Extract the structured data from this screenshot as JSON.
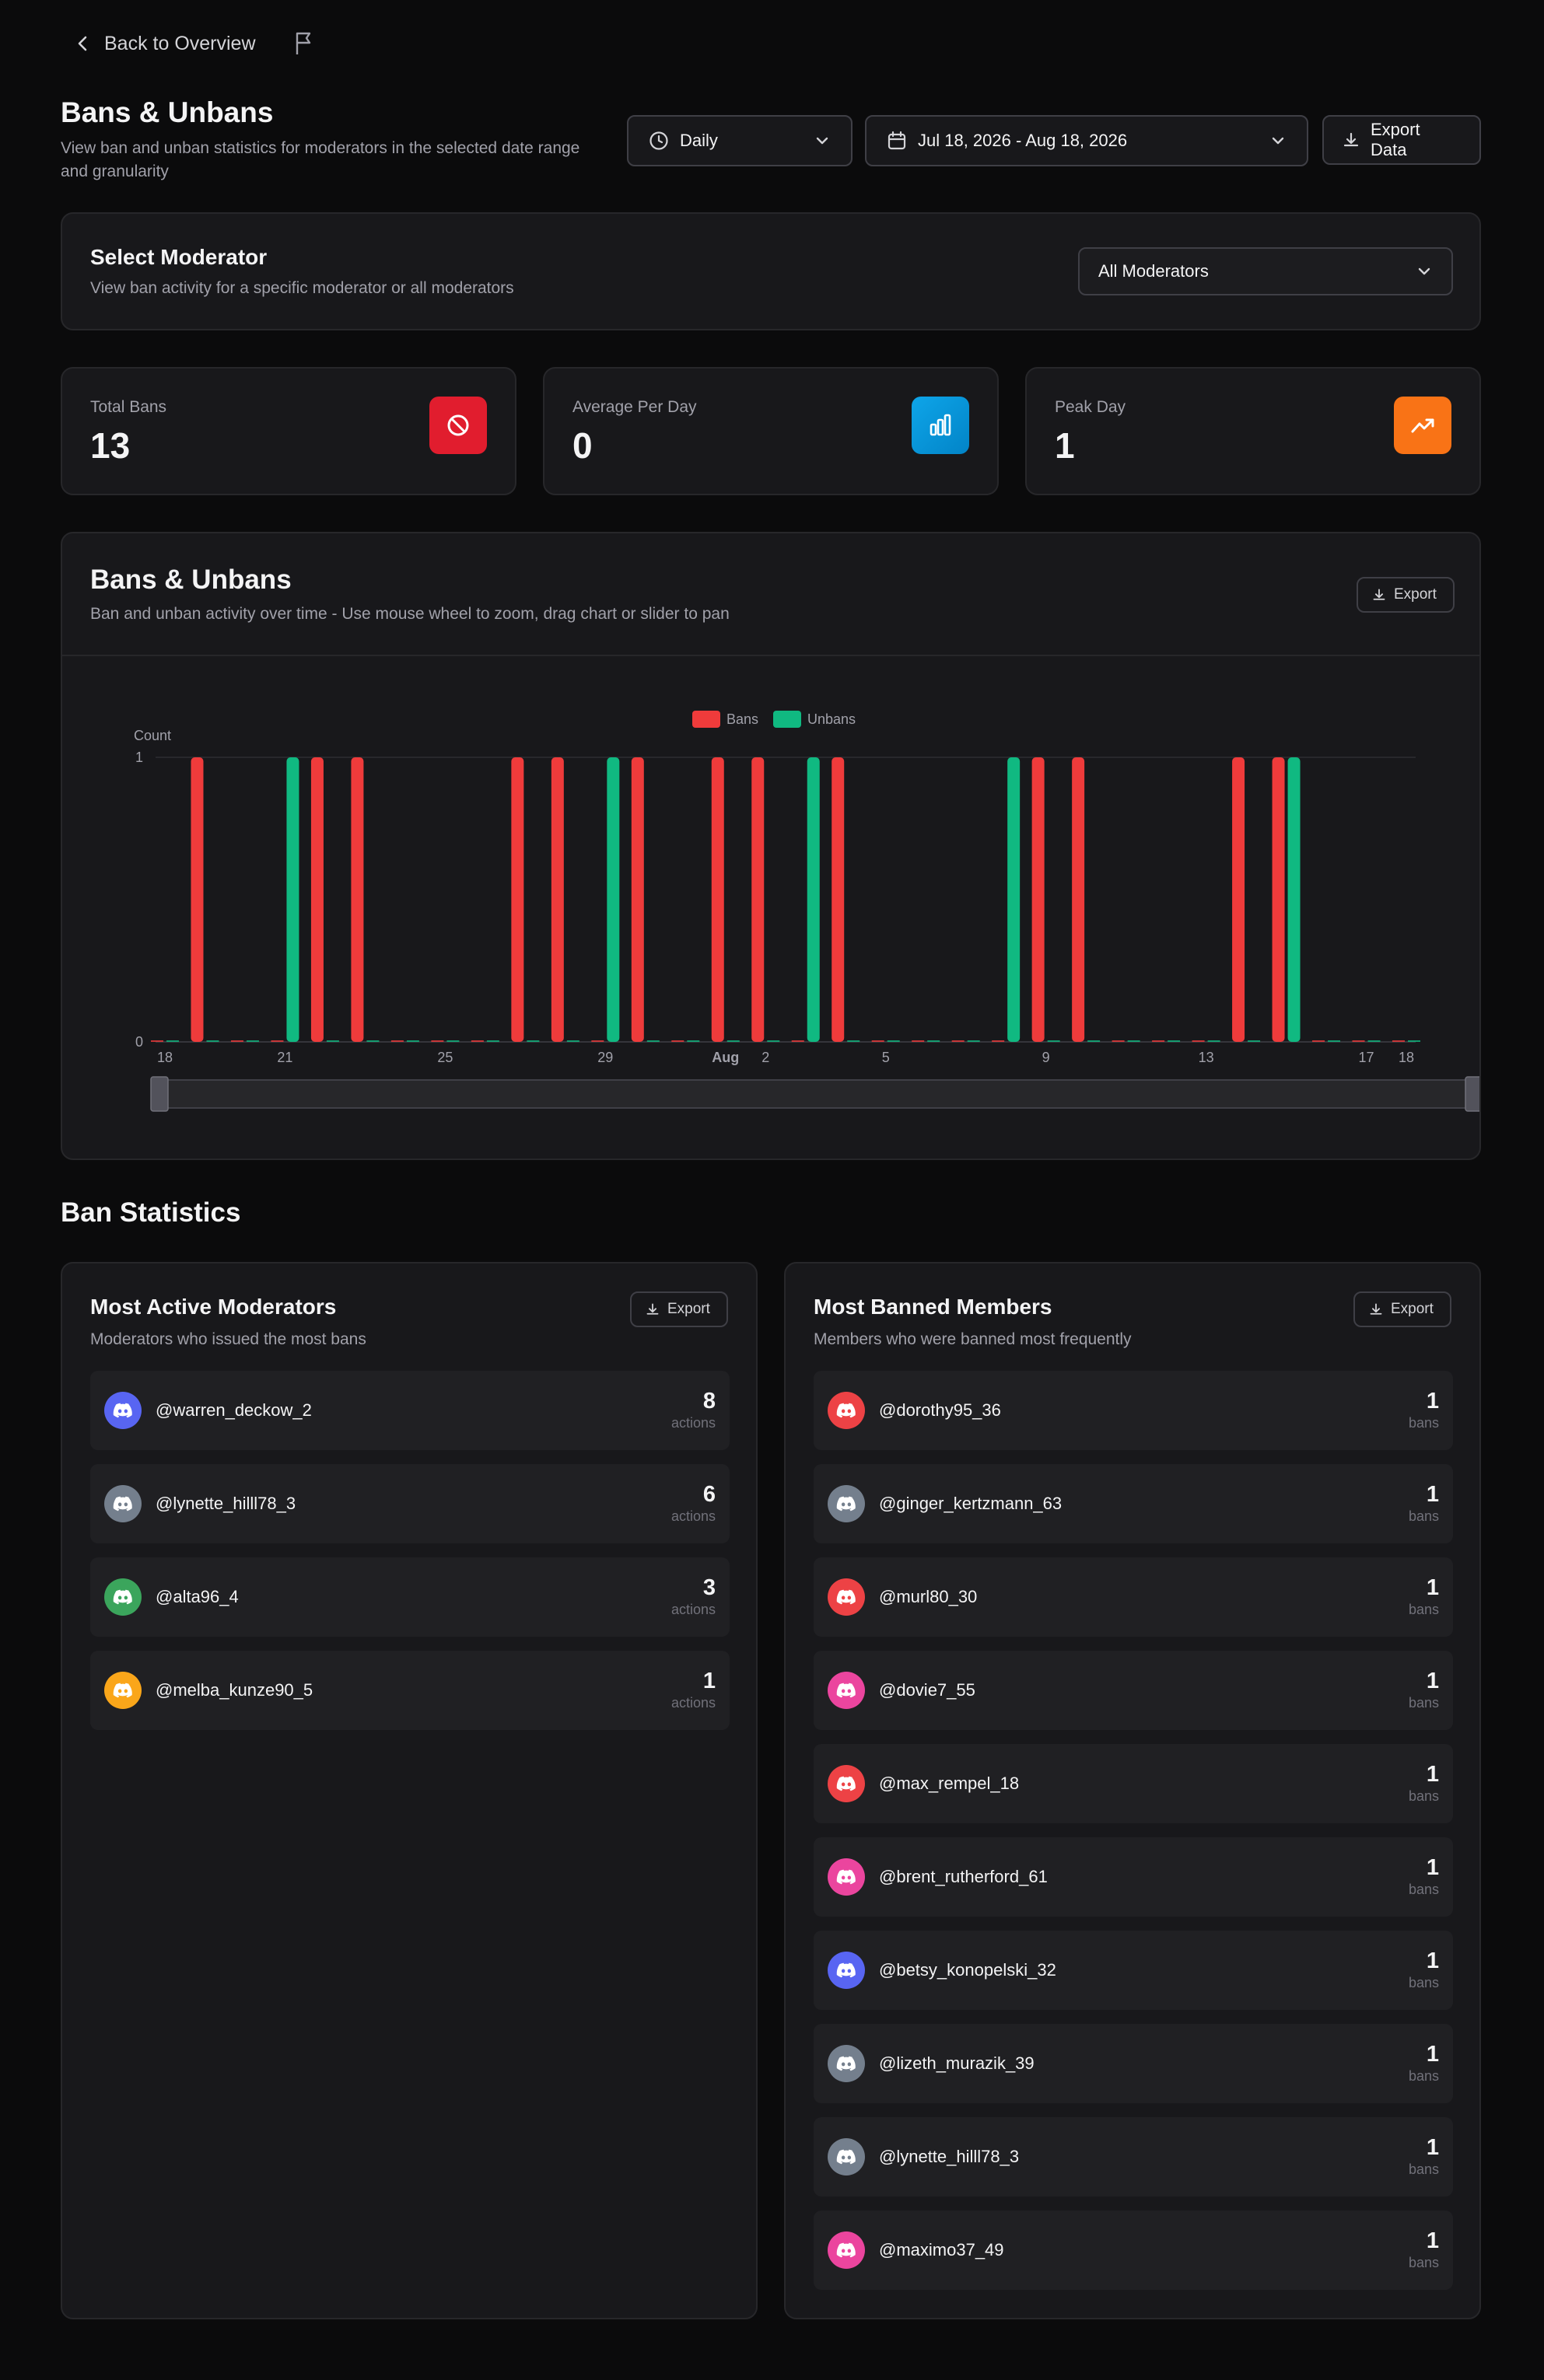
{
  "nav": {
    "back_label": "Back to Overview"
  },
  "header": {
    "title": "Bans & Unbans",
    "subtitle": "View ban and unban statistics for moderators in the selected date range and granularity",
    "granularity": "Daily",
    "date_range": "Jul 18, 2026 - Aug 18, 2026",
    "export_label": "Export Data"
  },
  "moderator_filter": {
    "title": "Select Moderator",
    "subtitle": "View ban activity for a specific moderator or all moderators",
    "selected": "All Moderators"
  },
  "stats": [
    {
      "label": "Total Bans",
      "value": "13",
      "icon": "ban-icon",
      "color": "#e11d2e"
    },
    {
      "label": "Average Per Day",
      "value": "0",
      "icon": "bar-chart-icon",
      "color": "#0ea5e9"
    },
    {
      "label": "Peak Day",
      "value": "1",
      "icon": "trending-up-icon",
      "color": "#f97316"
    }
  ],
  "chart_card": {
    "title": "Bans & Unbans",
    "subtitle": "Ban and unban activity over time - Use mouse wheel to zoom, drag chart or slider to pan",
    "export_label": "Export"
  },
  "chart_data": {
    "type": "bar",
    "ylabel": "Count",
    "ylim": [
      0,
      1
    ],
    "y_ticks": [
      "0",
      "1"
    ],
    "x_tick_labels": [
      "18",
      "21",
      "25",
      "29",
      "Aug",
      "2",
      "5",
      "9",
      "13",
      "17",
      "18"
    ],
    "categories": [
      "Jul 18",
      "Jul 19",
      "Jul 20",
      "Jul 21",
      "Jul 22",
      "Jul 23",
      "Jul 24",
      "Jul 25",
      "Jul 26",
      "Jul 27",
      "Jul 28",
      "Jul 29",
      "Jul 30",
      "Jul 31",
      "Aug 1",
      "Aug 2",
      "Aug 3",
      "Aug 4",
      "Aug 5",
      "Aug 6",
      "Aug 7",
      "Aug 8",
      "Aug 9",
      "Aug 10",
      "Aug 11",
      "Aug 12",
      "Aug 13",
      "Aug 14",
      "Aug 15",
      "Aug 16",
      "Aug 17",
      "Aug 18"
    ],
    "legend_position": "top",
    "series": [
      {
        "name": "Bans",
        "color": "#ef3b3b",
        "values": [
          0,
          1,
          0,
          0,
          1,
          1,
          0,
          0,
          0,
          1,
          1,
          0,
          1,
          0,
          1,
          1,
          0,
          1,
          0,
          0,
          0,
          0,
          1,
          1,
          0,
          0,
          0,
          1,
          1,
          0,
          0,
          0
        ]
      },
      {
        "name": "Unbans",
        "color": "#10b981",
        "values": [
          0,
          0,
          0,
          1,
          0,
          0,
          0,
          0,
          0,
          0,
          0,
          1,
          0,
          0,
          0,
          0,
          1,
          0,
          0,
          0,
          0,
          1,
          0,
          0,
          0,
          0,
          0,
          0,
          1,
          0,
          0,
          0
        ]
      }
    ]
  },
  "ban_statistics": {
    "title": "Ban Statistics",
    "moderators": {
      "title": "Most Active Moderators",
      "subtitle": "Moderators who issued the most bans",
      "export_label": "Export",
      "unit": "actions",
      "items": [
        {
          "name": "@warren_deckow_2",
          "count": "8",
          "color": "#5865f2"
        },
        {
          "name": "@lynette_hilll78_3",
          "count": "6",
          "color": "#747f8d"
        },
        {
          "name": "@alta96_4",
          "count": "3",
          "color": "#3ba55c"
        },
        {
          "name": "@melba_kunze90_5",
          "count": "1",
          "color": "#faa61a"
        }
      ]
    },
    "members": {
      "title": "Most Banned Members",
      "subtitle": "Members who were banned most frequently",
      "export_label": "Export",
      "unit": "bans",
      "items": [
        {
          "name": "@dorothy95_36",
          "count": "1",
          "color": "#ed4245"
        },
        {
          "name": "@ginger_kertzmann_63",
          "count": "1",
          "color": "#747f8d"
        },
        {
          "name": "@murl80_30",
          "count": "1",
          "color": "#ed4245"
        },
        {
          "name": "@dovie7_55",
          "count": "1",
          "color": "#eb459e"
        },
        {
          "name": "@max_rempel_18",
          "count": "1",
          "color": "#ed4245"
        },
        {
          "name": "@brent_rutherford_61",
          "count": "1",
          "color": "#eb459e"
        },
        {
          "name": "@betsy_konopelski_32",
          "count": "1",
          "color": "#5865f2"
        },
        {
          "name": "@lizeth_murazik_39",
          "count": "1",
          "color": "#747f8d"
        },
        {
          "name": "@lynette_hilll78_3",
          "count": "1",
          "color": "#747f8d"
        },
        {
          "name": "@maximo37_49",
          "count": "1",
          "color": "#eb459e"
        }
      ]
    }
  }
}
